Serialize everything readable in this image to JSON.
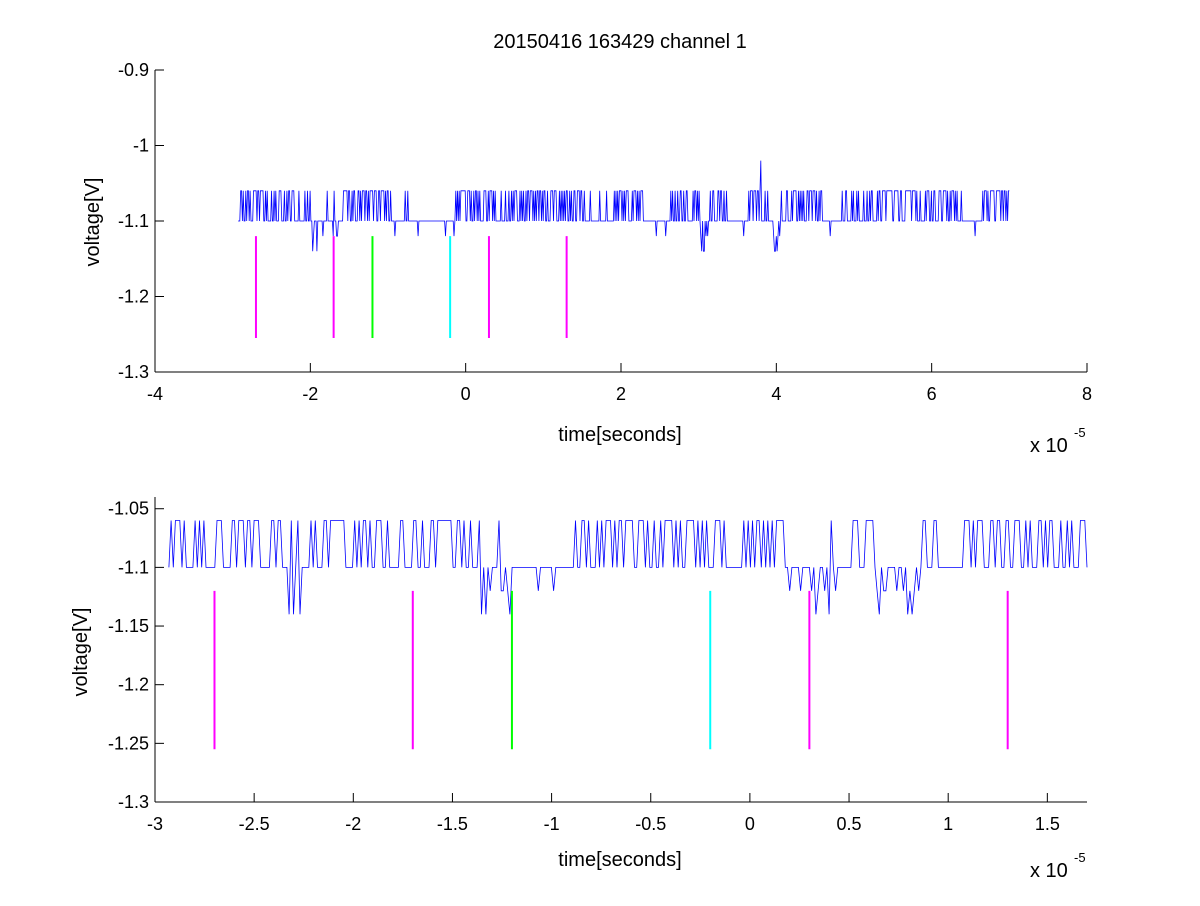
{
  "figure": {
    "title": "20150416 163429 channel 1",
    "background": "#ffffff"
  },
  "colors": {
    "signal": "#0000ff",
    "marker_magenta": "#ff00ff",
    "marker_green": "#00ff00",
    "marker_cyan": "#00ffff",
    "axes": "#000000"
  },
  "chart_data": [
    {
      "type": "line",
      "title": "20150416 163429 channel 1",
      "xlabel": "time[seconds]",
      "ylabel": "voltage[V]",
      "x_multiplier_label": "x 10",
      "x_multiplier_exponent": "-5",
      "xlim": [
        -4,
        8
      ],
      "ylim": [
        -1.3,
        -0.9
      ],
      "xticks": [
        -4,
        -2,
        0,
        2,
        4,
        6,
        8
      ],
      "xtick_labels": [
        "-4",
        "-2",
        "0",
        "2",
        "4",
        "6",
        "8"
      ],
      "yticks": [
        -0.9,
        -1.0,
        -1.1,
        -1.2,
        -1.3
      ],
      "ytick_labels": [
        "-0.9",
        "-1",
        "-1.1",
        "-1.2",
        "-1.3"
      ],
      "grid": false,
      "series": [
        {
          "kind": "signal",
          "x_range": [
            -2.93,
            7.0
          ],
          "baseline": -1.1,
          "levels": [
            -1.06,
            -1.1,
            -1.12,
            -1.14
          ],
          "spike": {
            "x": 3.8,
            "y": -1.02
          },
          "color": "#0000ff"
        }
      ],
      "markers": [
        {
          "x": -2.7,
          "y_top": -1.12,
          "y_bottom": -1.255,
          "color": "#ff00ff"
        },
        {
          "x": -1.7,
          "y_top": -1.12,
          "y_bottom": -1.255,
          "color": "#ff00ff"
        },
        {
          "x": -1.2,
          "y_top": -1.12,
          "y_bottom": -1.255,
          "color": "#00ff00"
        },
        {
          "x": -0.2,
          "y_top": -1.12,
          "y_bottom": -1.255,
          "color": "#00ffff"
        },
        {
          "x": 0.3,
          "y_top": -1.12,
          "y_bottom": -1.255,
          "color": "#ff00ff"
        },
        {
          "x": 1.3,
          "y_top": -1.12,
          "y_bottom": -1.255,
          "color": "#ff00ff"
        }
      ]
    },
    {
      "type": "line",
      "title": "",
      "xlabel": "time[seconds]",
      "ylabel": "voltage[V]",
      "x_multiplier_label": "x 10",
      "x_multiplier_exponent": "-5",
      "xlim": [
        -3.0,
        1.7
      ],
      "ylim": [
        -1.3,
        -1.04
      ],
      "xticks": [
        -3,
        -2.5,
        -2,
        -1.5,
        -1,
        -0.5,
        0,
        0.5,
        1,
        1.5
      ],
      "xtick_labels": [
        "-3",
        "-2.5",
        "-2",
        "-1.5",
        "-1",
        "-0.5",
        "0",
        "0.5",
        "1",
        "1.5"
      ],
      "yticks": [
        -1.05,
        -1.1,
        -1.15,
        -1.2,
        -1.25,
        -1.3
      ],
      "ytick_labels": [
        "-1.05",
        "-1.1",
        "-1.15",
        "-1.2",
        "-1.25",
        "-1.3"
      ],
      "grid": false,
      "series": [
        {
          "kind": "signal",
          "x_range": [
            -2.93,
            1.7
          ],
          "baseline": -1.1,
          "levels": [
            -1.06,
            -1.1,
            -1.12,
            -1.14
          ],
          "color": "#0000ff"
        }
      ],
      "markers": [
        {
          "x": -2.7,
          "y_top": -1.12,
          "y_bottom": -1.255,
          "color": "#ff00ff"
        },
        {
          "x": -1.7,
          "y_top": -1.12,
          "y_bottom": -1.255,
          "color": "#ff00ff"
        },
        {
          "x": -1.2,
          "y_top": -1.12,
          "y_bottom": -1.255,
          "color": "#00ff00"
        },
        {
          "x": -0.2,
          "y_top": -1.12,
          "y_bottom": -1.255,
          "color": "#00ffff"
        },
        {
          "x": 0.3,
          "y_top": -1.12,
          "y_bottom": -1.255,
          "color": "#ff00ff"
        },
        {
          "x": 1.3,
          "y_top": -1.12,
          "y_bottom": -1.255,
          "color": "#ff00ff"
        }
      ]
    }
  ]
}
